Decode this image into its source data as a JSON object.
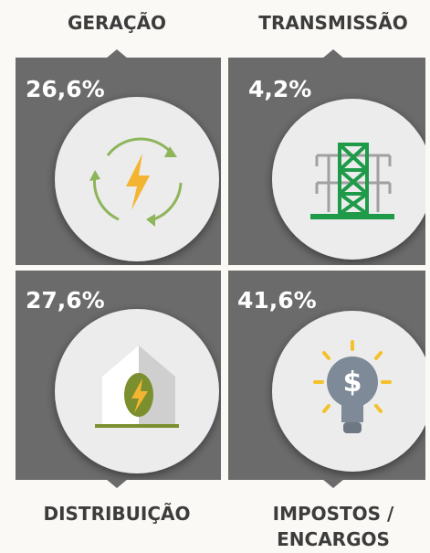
{
  "tiles": [
    {
      "label": [
        "GERAÇÃO"
      ],
      "share": "26,6%"
    },
    {
      "label": [
        "TRANSMISSÃO"
      ],
      "share": "4,2%"
    },
    {
      "label": [
        "DISTRIBUIÇÃO"
      ],
      "share": "27,6%"
    },
    {
      "label": [
        "IMPOSTOS /",
        "ENCARGOS"
      ],
      "share": "41,6%"
    }
  ]
}
